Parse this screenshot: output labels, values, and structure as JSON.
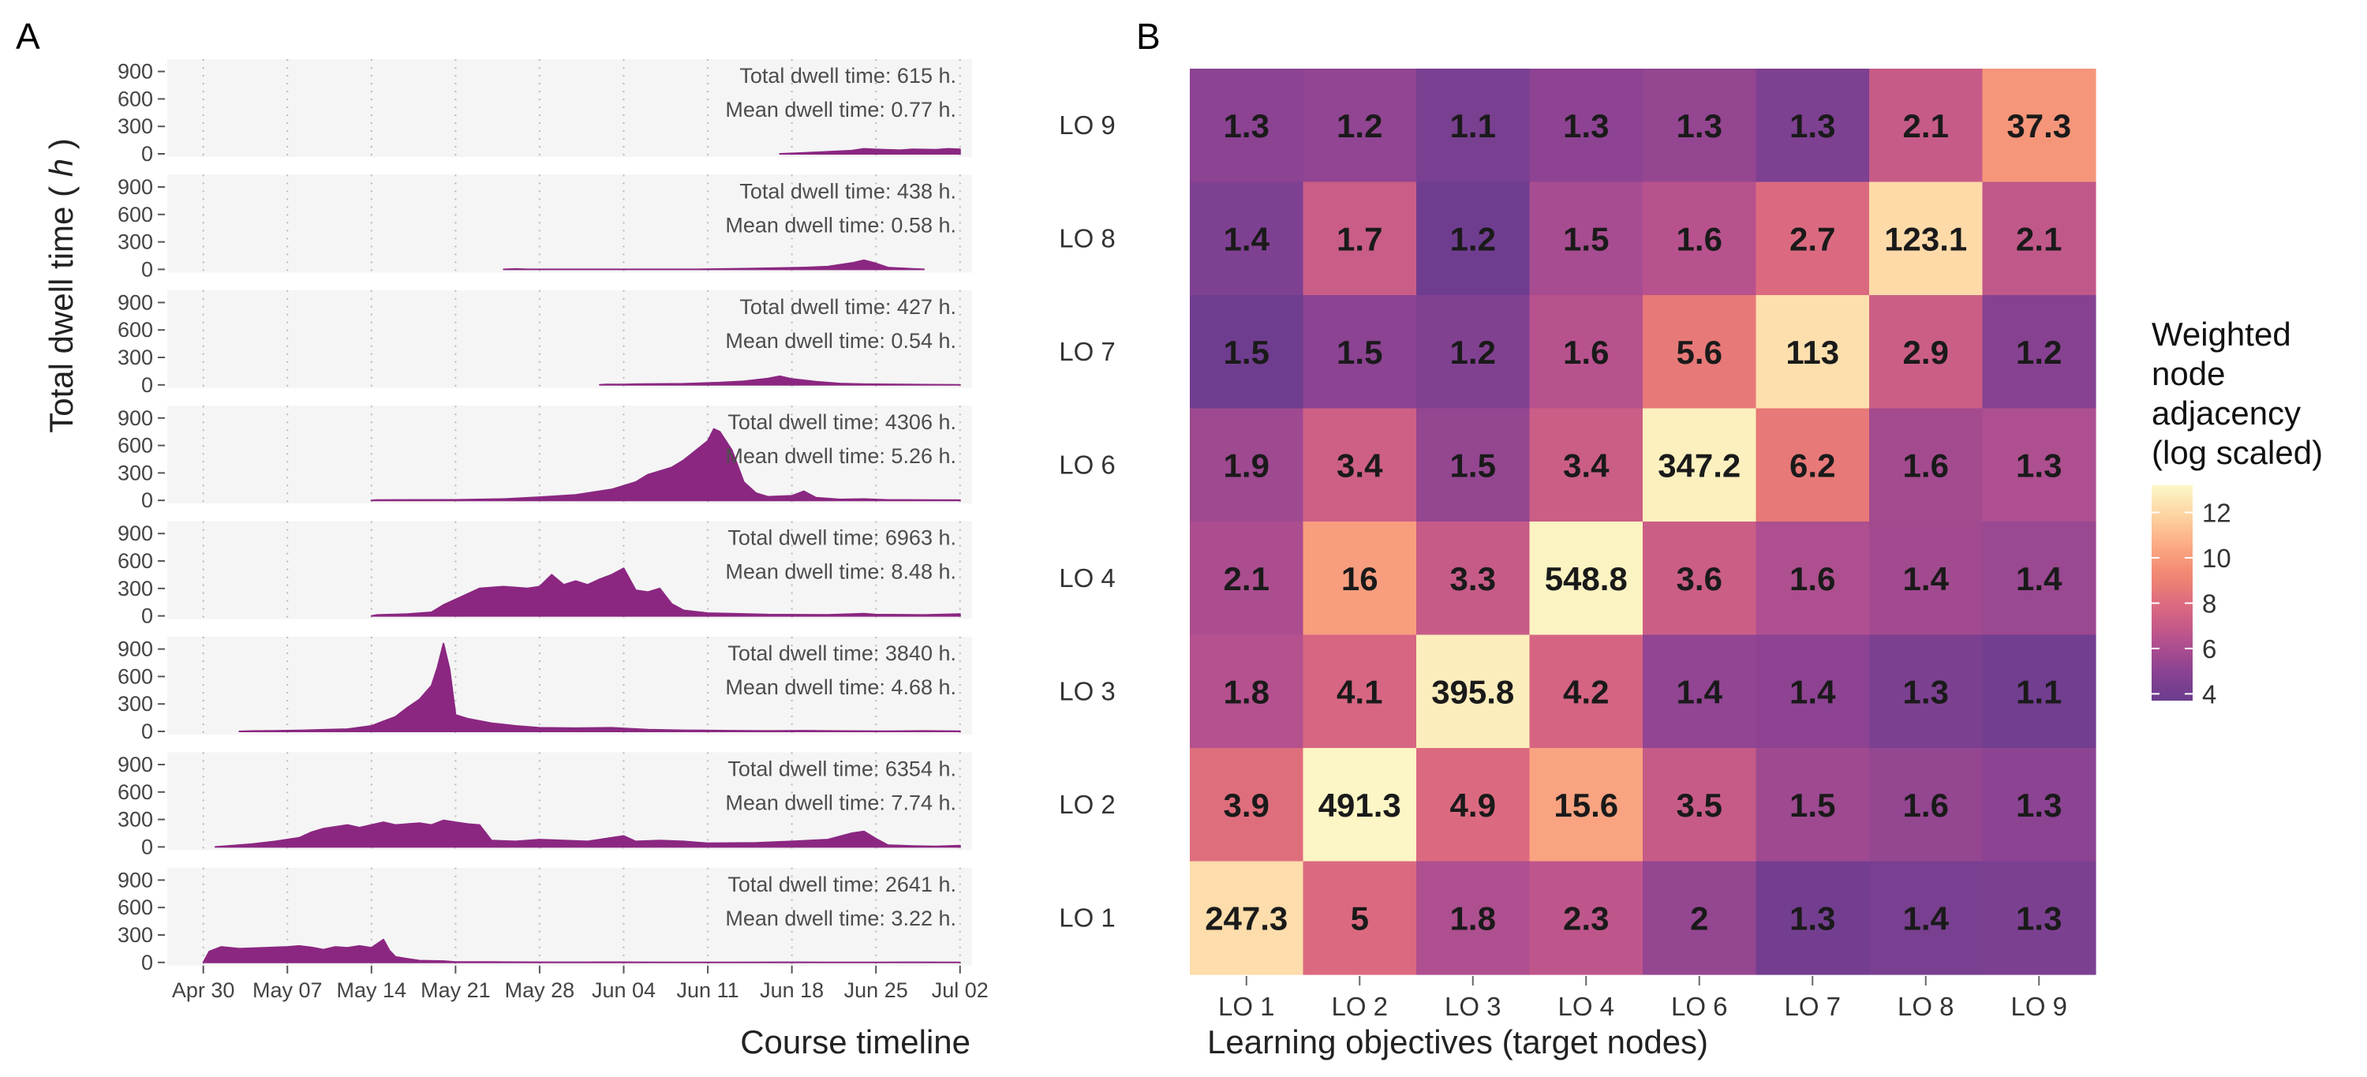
{
  "colors": {
    "area_fill": "#8b2781",
    "panel_bg": "#f5f5f5",
    "grid": "#b9b9b9",
    "magma_scale": [
      "#6a3c8f",
      "#8c4392",
      "#b8528e",
      "#d96781",
      "#f08472",
      "#fba883",
      "#fdd3a0",
      "#fcf8c8"
    ]
  },
  "panels": {
    "a_letter": "A",
    "b_letter": "B"
  },
  "chart_data": [
    {
      "type": "area",
      "panel": "A",
      "title": "",
      "xlabel": "Course timeline",
      "ylabel": "Total dwell time ( h )",
      "x_ticks": [
        "Apr 30",
        "May 07",
        "May 14",
        "May 21",
        "May 28",
        "Jun 04",
        "Jun 11",
        "Jun 18",
        "Jun 25",
        "Jul 02"
      ],
      "y_ticks": [
        "900",
        "600",
        "300",
        "0"
      ],
      "ylim": [
        0,
        1000
      ],
      "xlim_days": [
        -3,
        64
      ],
      "grid": "vertical dotted",
      "facets": [
        {
          "row": "LO 9",
          "total_label": "Total dwell time: 615 h.",
          "mean_label": "Mean dwell time: 0.77 h.",
          "points": [
            [
              48,
              0
            ],
            [
              50,
              10
            ],
            [
              52,
              22
            ],
            [
              54,
              35
            ],
            [
              55,
              55
            ],
            [
              56,
              48
            ],
            [
              58,
              40
            ],
            [
              59,
              50
            ],
            [
              61,
              45
            ],
            [
              62,
              55
            ],
            [
              63,
              50
            ]
          ]
        },
        {
          "row": "LO 8",
          "total_label": "Total dwell time: 438 h.",
          "mean_label": "Mean dwell time: 0.58 h.",
          "points": [
            [
              25,
              0
            ],
            [
              26,
              4
            ],
            [
              27,
              0
            ],
            [
              41,
              0
            ],
            [
              44,
              6
            ],
            [
              47,
              12
            ],
            [
              50,
              20
            ],
            [
              52,
              30
            ],
            [
              54,
              70
            ],
            [
              55,
              100
            ],
            [
              56,
              65
            ],
            [
              57,
              20
            ],
            [
              59,
              6
            ],
            [
              60,
              0
            ]
          ]
        },
        {
          "row": "LO 7",
          "total_label": "Total dwell time: 427 h.",
          "mean_label": "Mean dwell time: 0.54 h.",
          "points": [
            [
              33,
              0
            ],
            [
              33.5,
              4
            ],
            [
              35,
              4
            ],
            [
              36,
              8
            ],
            [
              40,
              12
            ],
            [
              43,
              25
            ],
            [
              45,
              40
            ],
            [
              47,
              70
            ],
            [
              48,
              95
            ],
            [
              49,
              65
            ],
            [
              51,
              35
            ],
            [
              53,
              15
            ],
            [
              55,
              8
            ],
            [
              57,
              6
            ],
            [
              60,
              3
            ],
            [
              63,
              0
            ]
          ]
        },
        {
          "row": "LO 6",
          "total_label": "Total dwell time: 4306 h.",
          "mean_label": "Mean dwell time: 5.26 h.",
          "points": [
            [
              14,
              0
            ],
            [
              14.5,
              4
            ],
            [
              21,
              6
            ],
            [
              25,
              15
            ],
            [
              28,
              35
            ],
            [
              31,
              60
            ],
            [
              34,
              120
            ],
            [
              36,
              200
            ],
            [
              37,
              280
            ],
            [
              39,
              360
            ],
            [
              40,
              440
            ],
            [
              42,
              650
            ],
            [
              42.5,
              780
            ],
            [
              43,
              750
            ],
            [
              44,
              550
            ],
            [
              45,
              200
            ],
            [
              46,
              80
            ],
            [
              47,
              40
            ],
            [
              49,
              50
            ],
            [
              50,
              100
            ],
            [
              51,
              30
            ],
            [
              53,
              10
            ],
            [
              55,
              15
            ],
            [
              57,
              5
            ],
            [
              60,
              4
            ],
            [
              63,
              3
            ]
          ]
        },
        {
          "row": "LO 4",
          "total_label": "Total dwell time: 6963 h.",
          "mean_label": "Mean dwell time: 8.48 h.",
          "points": [
            [
              14,
              0
            ],
            [
              14.5,
              10
            ],
            [
              17,
              20
            ],
            [
              19,
              40
            ],
            [
              20,
              120
            ],
            [
              22,
              240
            ],
            [
              23,
              300
            ],
            [
              25,
              320
            ],
            [
              27,
              300
            ],
            [
              28,
              320
            ],
            [
              29,
              450
            ],
            [
              30,
              340
            ],
            [
              31,
              380
            ],
            [
              32,
              340
            ],
            [
              33,
              400
            ],
            [
              34,
              450
            ],
            [
              35,
              520
            ],
            [
              36,
              280
            ],
            [
              37,
              260
            ],
            [
              38,
              300
            ],
            [
              39,
              130
            ],
            [
              40,
              60
            ],
            [
              42,
              30
            ],
            [
              44,
              25
            ],
            [
              47,
              15
            ],
            [
              52,
              12
            ],
            [
              55,
              25
            ],
            [
              56,
              15
            ],
            [
              60,
              10
            ],
            [
              63,
              20
            ]
          ]
        },
        {
          "row": "LO 3",
          "total_label": "Total dwell time: 3840 h.",
          "mean_label": "Mean dwell time: 4.68 h.",
          "points": [
            [
              3,
              0
            ],
            [
              4,
              4
            ],
            [
              6,
              6
            ],
            [
              8,
              10
            ],
            [
              10,
              18
            ],
            [
              12,
              25
            ],
            [
              14,
              60
            ],
            [
              15,
              110
            ],
            [
              16,
              160
            ],
            [
              17,
              260
            ],
            [
              18,
              350
            ],
            [
              19,
              500
            ],
            [
              19.5,
              700
            ],
            [
              20,
              960
            ],
            [
              20.5,
              680
            ],
            [
              21,
              180
            ],
            [
              22,
              140
            ],
            [
              24,
              90
            ],
            [
              26,
              60
            ],
            [
              28,
              40
            ],
            [
              31,
              35
            ],
            [
              34,
              40
            ],
            [
              37,
              20
            ],
            [
              40,
              12
            ],
            [
              44,
              8
            ],
            [
              47,
              5
            ],
            [
              50,
              8
            ],
            [
              53,
              4
            ],
            [
              57,
              3
            ],
            [
              60,
              5
            ],
            [
              63,
              3
            ]
          ]
        },
        {
          "row": "LO 2",
          "total_label": "Total dwell time: 6354 h.",
          "mean_label": "Mean dwell time: 7.74 h.",
          "points": [
            [
              1,
              0
            ],
            [
              2,
              10
            ],
            [
              4,
              30
            ],
            [
              6,
              60
            ],
            [
              8,
              100
            ],
            [
              9,
              160
            ],
            [
              10,
              200
            ],
            [
              12,
              240
            ],
            [
              13,
              210
            ],
            [
              15,
              270
            ],
            [
              16,
              240
            ],
            [
              17,
              250
            ],
            [
              18,
              260
            ],
            [
              19,
              240
            ],
            [
              20,
              290
            ],
            [
              21,
              270
            ],
            [
              22,
              250
            ],
            [
              23,
              240
            ],
            [
              24,
              70
            ],
            [
              26,
              60
            ],
            [
              28,
              80
            ],
            [
              30,
              70
            ],
            [
              32,
              60
            ],
            [
              33,
              80
            ],
            [
              35,
              120
            ],
            [
              36,
              60
            ],
            [
              38,
              70
            ],
            [
              40,
              60
            ],
            [
              42,
              40
            ],
            [
              46,
              45
            ],
            [
              49,
              60
            ],
            [
              52,
              80
            ],
            [
              54,
              150
            ],
            [
              55,
              170
            ],
            [
              56,
              90
            ],
            [
              57,
              20
            ],
            [
              59,
              10
            ],
            [
              61,
              5
            ],
            [
              63,
              15
            ]
          ]
        },
        {
          "row": "LO 1",
          "total_label": "Total dwell time: 2641 h.",
          "mean_label": "Mean dwell time: 3.22 h.",
          "points": [
            [
              0,
              0
            ],
            [
              0.5,
              120
            ],
            [
              1.5,
              170
            ],
            [
              3,
              150
            ],
            [
              5,
              160
            ],
            [
              7,
              170
            ],
            [
              8,
              180
            ],
            [
              9,
              165
            ],
            [
              10,
              140
            ],
            [
              11,
              170
            ],
            [
              12,
              160
            ],
            [
              13,
              180
            ],
            [
              14,
              160
            ],
            [
              15,
              250
            ],
            [
              15.5,
              130
            ],
            [
              16,
              60
            ],
            [
              17,
              40
            ],
            [
              18,
              20
            ],
            [
              20,
              15
            ],
            [
              21,
              5
            ],
            [
              24,
              4
            ],
            [
              27,
              3
            ],
            [
              29,
              2
            ],
            [
              32,
              2
            ],
            [
              35,
              3
            ],
            [
              36,
              2
            ],
            [
              40,
              1
            ],
            [
              44,
              1
            ],
            [
              48,
              2
            ],
            [
              52,
              1
            ],
            [
              56,
              1
            ],
            [
              60,
              2
            ],
            [
              63,
              1
            ]
          ]
        }
      ]
    },
    {
      "type": "heatmap",
      "panel": "B",
      "title": "",
      "xlabel": "Learning objectives (target nodes)",
      "ylabel": "",
      "x_categories": [
        "LO 1",
        "LO 2",
        "LO 3",
        "LO 4",
        "LO 6",
        "LO 7",
        "LO 8",
        "LO 9"
      ],
      "y_categories_top_to_bottom": [
        "LO 9",
        "LO 8",
        "LO 7",
        "LO 6",
        "LO 4",
        "LO 3",
        "LO 2",
        "LO 1"
      ],
      "cell_labels": [
        [
          "1.3",
          "1.2",
          "1.1",
          "1.3",
          "1.3",
          "1.3",
          "2.1",
          "37.3"
        ],
        [
          "1.4",
          "1.7",
          "1.2",
          "1.5",
          "1.6",
          "2.7",
          "123.1",
          "2.1"
        ],
        [
          "1.5",
          "1.5",
          "1.2",
          "1.6",
          "5.6",
          "113",
          "2.9",
          "1.2"
        ],
        [
          "1.9",
          "3.4",
          "1.5",
          "3.4",
          "347.2",
          "6.2",
          "1.6",
          "1.3"
        ],
        [
          "2.1",
          "16",
          "3.3",
          "548.8",
          "3.6",
          "1.6",
          "1.4",
          "1.4"
        ],
        [
          "1.8",
          "4.1",
          "395.8",
          "4.2",
          "1.4",
          "1.4",
          "1.3",
          "1.1"
        ],
        [
          "3.9",
          "491.3",
          "4.9",
          "15.6",
          "3.5",
          "1.5",
          "1.6",
          "1.3"
        ],
        [
          "247.3",
          "5",
          "1.8",
          "2.3",
          "2",
          "1.3",
          "1.4",
          "1.3"
        ]
      ],
      "color_values": [
        [
          5.0,
          5.2,
          4.3,
          5.1,
          5.3,
          4.5,
          7.0,
          9.8
        ],
        [
          4.5,
          7.1,
          3.9,
          5.9,
          6.4,
          7.9,
          12.1,
          6.8
        ],
        [
          3.9,
          5.0,
          4.6,
          6.4,
          8.6,
          12.3,
          7.2,
          4.8
        ],
        [
          5.6,
          7.3,
          5.3,
          7.2,
          12.9,
          8.6,
          5.8,
          6.1
        ],
        [
          6.0,
          10.1,
          7.0,
          13.0,
          7.2,
          6.1,
          5.7,
          5.5
        ],
        [
          6.3,
          7.7,
          12.8,
          7.6,
          5.2,
          5.1,
          4.4,
          4.0
        ],
        [
          8.1,
          13.1,
          7.9,
          10.3,
          7.0,
          5.6,
          5.3,
          5.0
        ],
        [
          12.2,
          7.9,
          6.1,
          6.7,
          5.3,
          4.1,
          4.3,
          4.4
        ]
      ],
      "legend": {
        "title_lines": [
          "Weighted",
          "node",
          "adjacency",
          "(log scaled)"
        ],
        "ticks": [
          "12",
          "10",
          "8",
          "6",
          "4"
        ],
        "tick_values": [
          12,
          10,
          8,
          6,
          4
        ],
        "range": [
          3.7,
          13.2
        ],
        "position": "right"
      }
    }
  ]
}
